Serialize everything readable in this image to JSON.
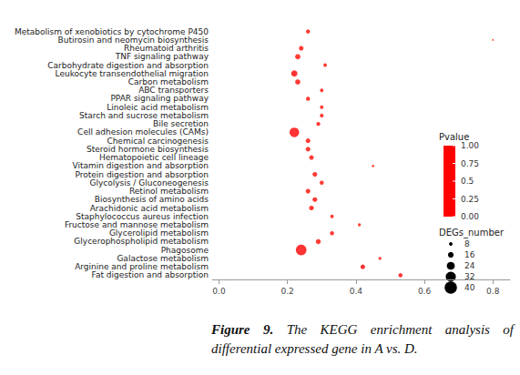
{
  "chart_data": {
    "type": "scatter",
    "categories": [
      "Metabolism of xenobiotics by cytochrome P450",
      "Butirosin and neomycin biosynthesis",
      "Rheumatoid arthritis",
      "TNF signaling pathway",
      "Carbohydrate digestion and absorption",
      "Leukocyte transendothelial migration",
      "Carbon metabolism",
      "ABC transporters",
      "PPAR signaling pathway",
      "Linoleic acid metabolism",
      "Starch and sucrose metabolism",
      "Bile secretion",
      "Cell adhesion molecules (CAMs)",
      "Chemical carcinogenesis",
      "Steroid hormone biosynthesis",
      "Hematopoietic cell lineage",
      "Vitamin digestion and absorption",
      "Protein digestion and absorption",
      "Glycolysis / Gluconeogenesis",
      "Retinol metabolism",
      "Biosynthesis of amino acids",
      "Arachidonic acid metabolism",
      "Staphylococcus aureus infection",
      "Fructose and mannose metabolism",
      "Glycerolipid metabolism",
      "Glycerophospholipid metabolism",
      "Phagosome",
      "Galactose metabolism",
      "Arginine and proline metabolism",
      "Fat digestion and absorption"
    ],
    "values": [
      0.26,
      0.8,
      0.24,
      0.23,
      0.31,
      0.22,
      0.23,
      0.3,
      0.26,
      0.3,
      0.3,
      0.29,
      0.22,
      0.26,
      0.26,
      0.27,
      0.45,
      0.28,
      0.3,
      0.26,
      0.28,
      0.27,
      0.33,
      0.41,
      0.33,
      0.29,
      0.24,
      0.47,
      0.42,
      0.53
    ],
    "pvalue": [
      0.01,
      0.05,
      0.01,
      0.01,
      0.01,
      0.0,
      0.01,
      0.01,
      0.01,
      0.01,
      0.01,
      0.01,
      0.0,
      0.01,
      0.01,
      0.01,
      0.02,
      0.01,
      0.01,
      0.01,
      0.01,
      0.01,
      0.01,
      0.02,
      0.01,
      0.01,
      0.0,
      0.01,
      0.0,
      0.0
    ],
    "degs_number": [
      10,
      2,
      12,
      14,
      8,
      18,
      14,
      8,
      10,
      8,
      9,
      9,
      30,
      12,
      12,
      12,
      4,
      12,
      10,
      12,
      12,
      12,
      8,
      6,
      10,
      13,
      34,
      6,
      12,
      10
    ],
    "xlim": [
      -0.02,
      0.85
    ],
    "xticks": [
      {
        "value": 0,
        "label": "0.0"
      },
      0.2,
      0.4,
      0.6,
      0.8
    ],
    "grid": false,
    "pvalue_title": "Pvalue",
    "pvalue_range": [
      0,
      1
    ],
    "pvalue_ticks": [
      {
        "value": 0,
        "label": "0.00"
      },
      0.25,
      0.5,
      0.75,
      {
        "value": 1,
        "label": "1.00"
      }
    ],
    "pvalue_colors": [
      "#ff0000",
      "#ffff00",
      "#00ff00",
      "#00ffff",
      "#0000ff"
    ],
    "size_title": "DEGs_number",
    "size_ticks": [
      8,
      16,
      24,
      32,
      40
    ],
    "color": "#000000",
    "caption": {
      "label": "Figure 9.",
      "text": "The KEGG enrichment analysis of differential expressed gene in A vs. D."
    }
  }
}
